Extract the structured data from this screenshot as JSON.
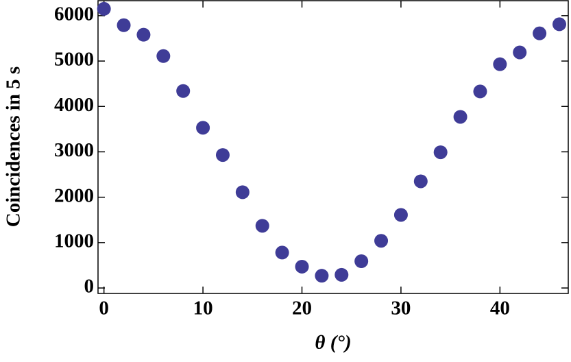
{
  "chart_data": {
    "type": "scatter",
    "xlabel": "θ (°)",
    "ylabel": "Coincidences in 5 s",
    "series": [
      {
        "color": "#3f3c97",
        "x": [
          0,
          2,
          4,
          6,
          8,
          10,
          12,
          14,
          16,
          18,
          20,
          22,
          24,
          26,
          28,
          30,
          32,
          34,
          36,
          38,
          40,
          42,
          44,
          46
        ],
        "values": [
          6150,
          5790,
          5580,
          5110,
          4340,
          3530,
          2930,
          2110,
          1370,
          780,
          470,
          270,
          290,
          590,
          1040,
          1610,
          2350,
          2990,
          3770,
          4330,
          4930,
          5190,
          5610,
          5810
        ]
      }
    ],
    "xlim": [
      -0.6,
      46.9
    ],
    "ylim": [
      -120,
      6330
    ],
    "xticks": [
      0,
      10,
      20,
      30,
      40
    ],
    "yticks": [
      0,
      1000,
      2000,
      3000,
      4000,
      5000,
      6000
    ]
  }
}
